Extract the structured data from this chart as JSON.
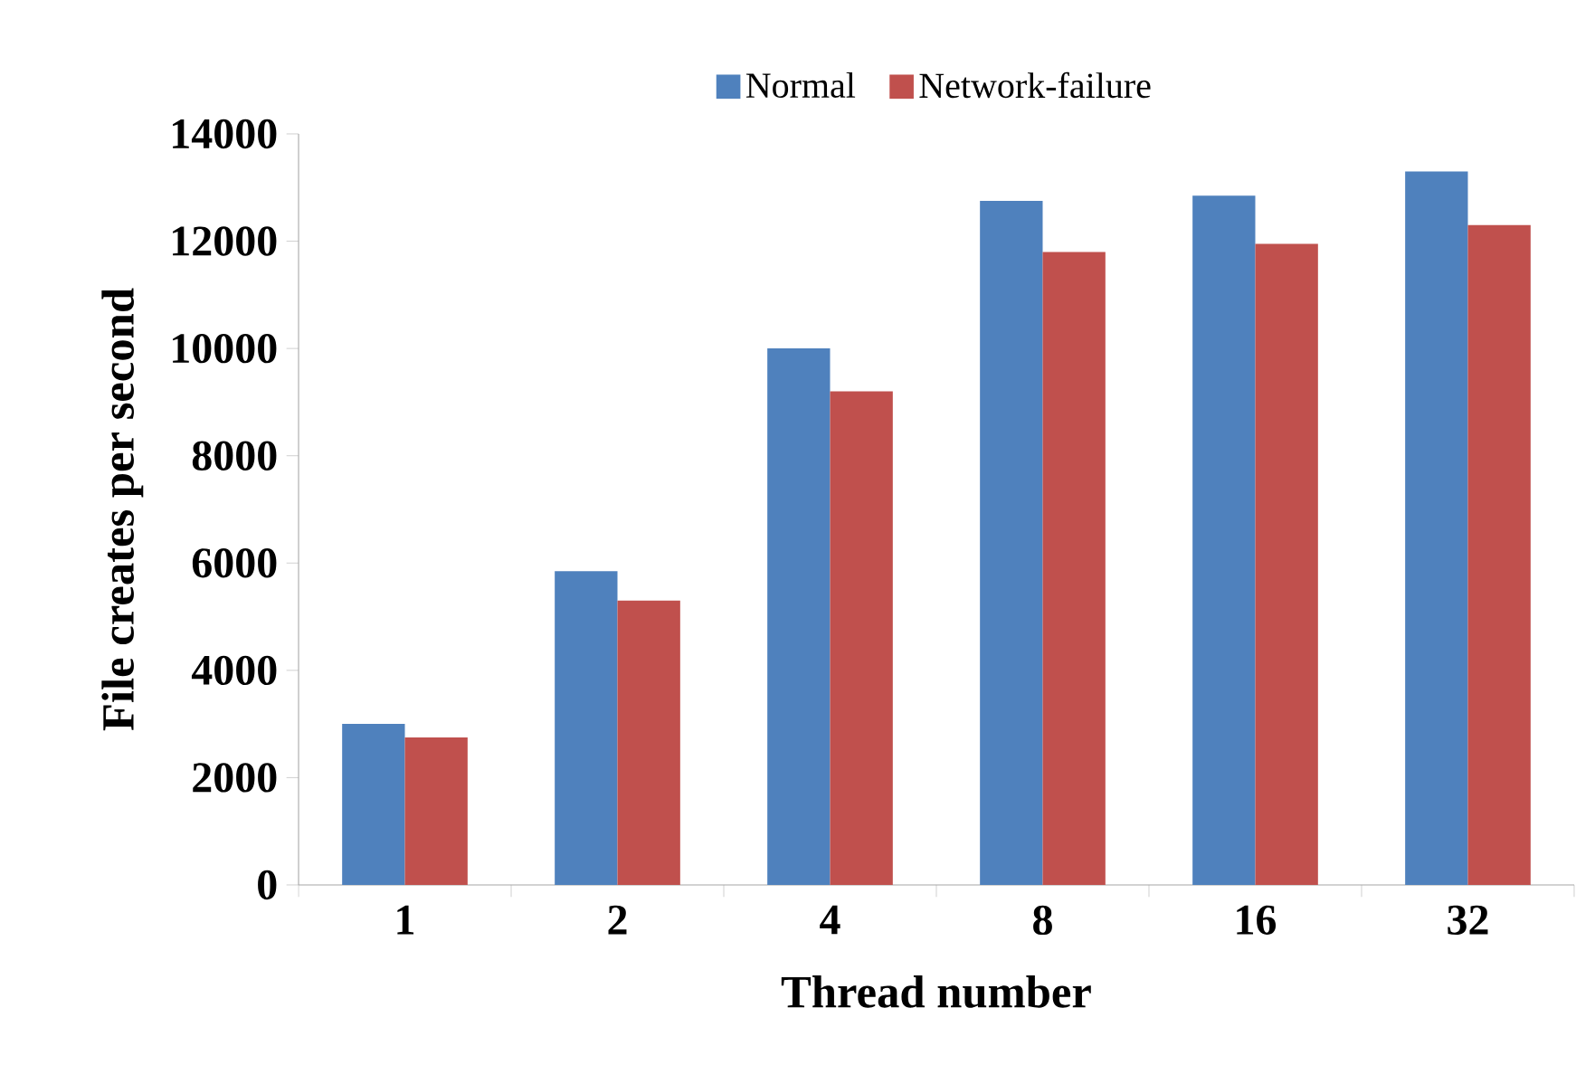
{
  "chart_data": {
    "type": "bar",
    "xlabel": "Thread number",
    "ylabel": "File creates per second",
    "categories": [
      "1",
      "2",
      "4",
      "8",
      "16",
      "32"
    ],
    "series": [
      {
        "name": "Normal",
        "color": "#4f81bd",
        "values": [
          3000,
          5850,
          10000,
          12750,
          12850,
          13300
        ]
      },
      {
        "name": "Network-failure",
        "color": "#c0504d",
        "values": [
          2750,
          5300,
          9200,
          11800,
          11950,
          12300
        ]
      }
    ],
    "ylim": [
      0,
      14000
    ],
    "yticks": [
      0,
      2000,
      4000,
      6000,
      8000,
      10000,
      12000,
      14000
    ],
    "legend": "top"
  }
}
